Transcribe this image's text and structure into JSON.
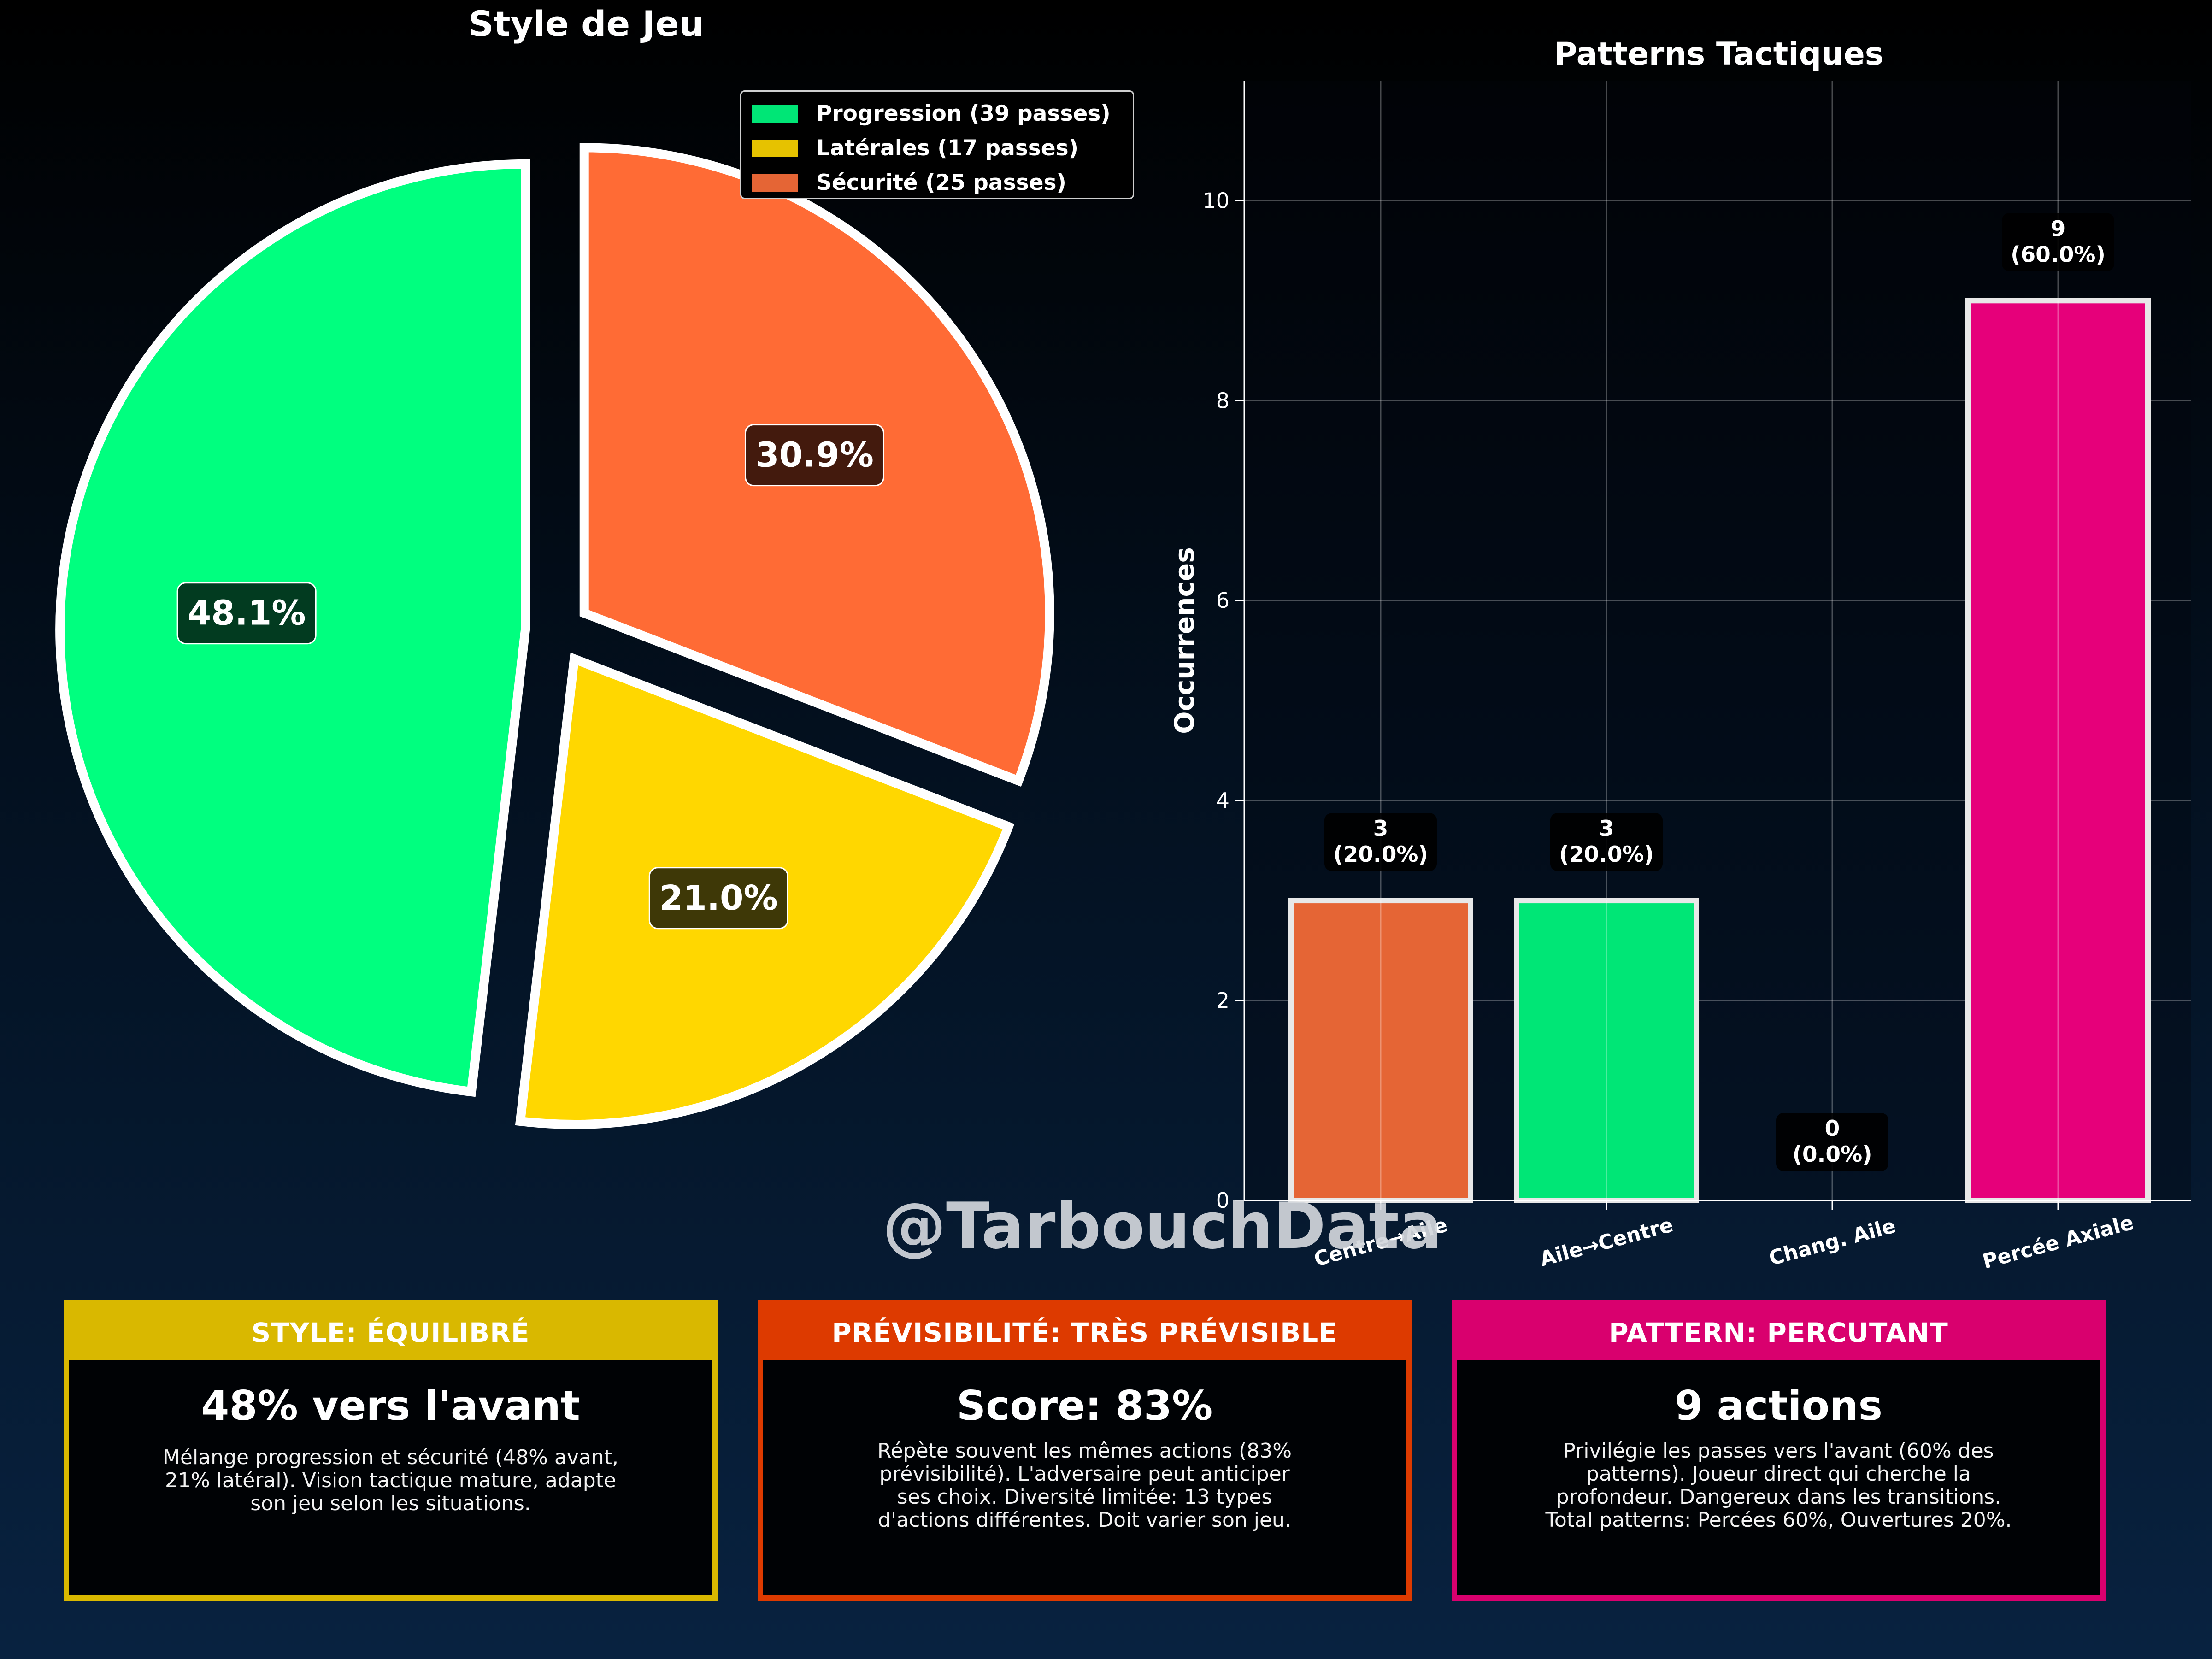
{
  "watermark": "@TarbouchData",
  "chart_data": [
    {
      "type": "pie",
      "title": "Style de Jeu",
      "legend_position": "upper-right",
      "slices": [
        {
          "label": "Progression (39 passes)",
          "value": 39,
          "pct_label": "48.1%",
          "color": "#00ff7f"
        },
        {
          "label": "Latérales (17 passes)",
          "value": 17,
          "pct_label": "21.0%",
          "color": "#ffd700"
        },
        {
          "label": "Sécurité (25 passes)",
          "value": 25,
          "pct_label": "30.9%",
          "color": "#ff6b35"
        }
      ]
    },
    {
      "type": "bar",
      "title": "Patterns Tactiques",
      "xlabel": "",
      "ylabel": "Occurrences",
      "ylim": [
        0,
        11.2
      ],
      "yticks": [
        0,
        2,
        4,
        6,
        8,
        10
      ],
      "grid": true,
      "categories": [
        "Centre→Aile",
        "Aile→Centre",
        "Chang. Aile",
        "Percée Axiale"
      ],
      "values": [
        3,
        3,
        0,
        9
      ],
      "data_labels": [
        [
          "3",
          "(20.0%)"
        ],
        [
          "3",
          "(20.0%)"
        ],
        [
          "0",
          "(0.0%)"
        ],
        [
          "9",
          "(60.0%)"
        ]
      ],
      "colors": [
        "#e56535",
        "#00e676",
        "#2a6fdb",
        "#e6007a"
      ]
    }
  ],
  "cards": [
    {
      "header": "STYLE: ÉQUILIBRÉ",
      "headline": "48% vers l'avant",
      "lines": [
        "Mélange progression et sécurité (48% avant,",
        "21% latéral). Vision tactique mature, adapte",
        "son jeu selon les situations."
      ],
      "color": "#d9b800"
    },
    {
      "header": "PRÉVISIBILITÉ: TRÈS PRÉVISIBLE",
      "headline": "Score: 83%",
      "lines": [
        "Répète souvent les mêmes actions (83%",
        "prévisibilité). L'adversaire peut anticiper",
        "ses choix. Diversité limitée: 13 types",
        "d'actions différentes. Doit varier son jeu."
      ],
      "color": "#dd3a00"
    },
    {
      "header": "PATTERN: PERCUTANT",
      "headline": "9 actions",
      "lines": [
        "Privilégie les passes vers l'avant (60% des",
        "patterns). Joueur direct qui cherche la",
        "profondeur. Dangereux dans les transitions.",
        "Total patterns: Percées 60%, Ouvertures 20%."
      ],
      "color": "#d9006e"
    }
  ]
}
